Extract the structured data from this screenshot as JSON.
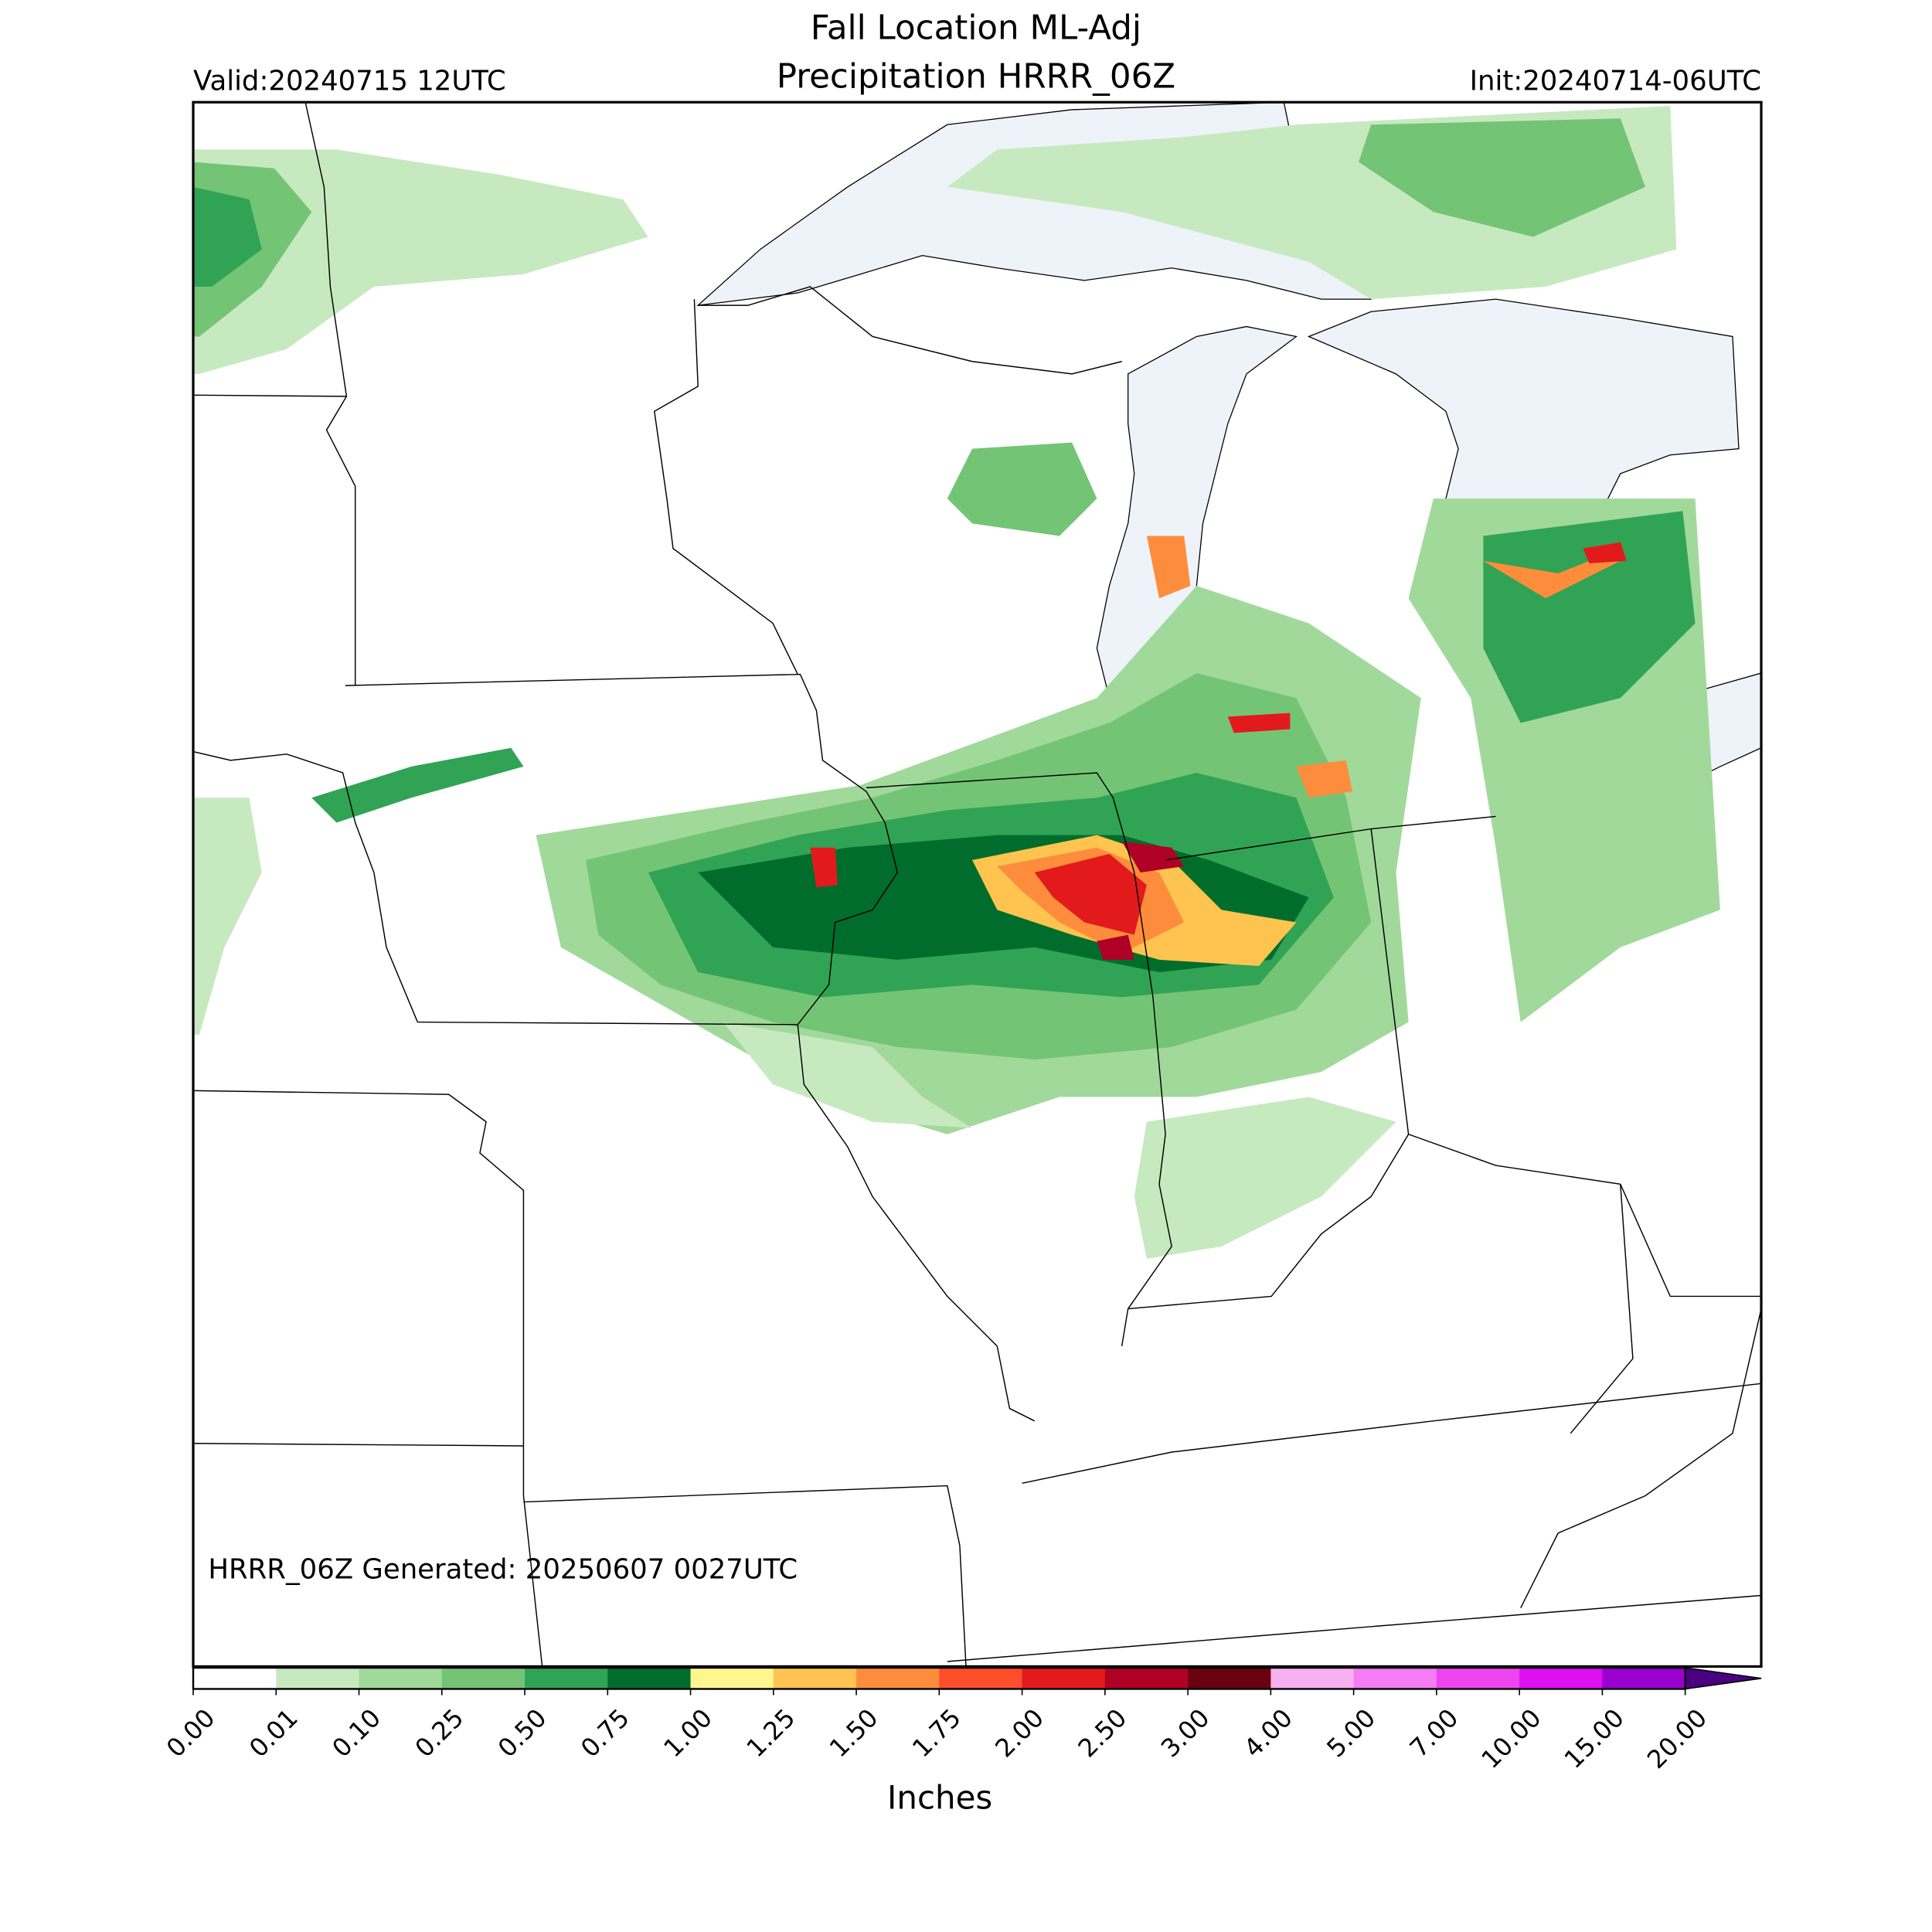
{
  "header": {
    "title_line1": "Fall Location ML-Adj",
    "title_line2": "Precipitation HRRR_06Z",
    "valid": "Valid:20240715 12UTC",
    "init": "Init:20240714-06UTC"
  },
  "footer": {
    "generated": "HRRR_06Z Generated: 20250607 0027UTC"
  },
  "colorbar": {
    "label": "Inches",
    "ticks": [
      {
        "value": 0,
        "label": "0.00"
      },
      {
        "value": 0.01,
        "label": "0.01"
      },
      {
        "value": 0.1,
        "label": "0.10"
      },
      {
        "value": 0.25,
        "label": "0.25"
      },
      {
        "value": 0.5,
        "label": "0.50"
      },
      {
        "value": 0.75,
        "label": "0.75"
      },
      {
        "value": 1,
        "label": "1.00"
      },
      {
        "value": 1.25,
        "label": "1.25"
      },
      {
        "value": 1.5,
        "label": "1.50"
      },
      {
        "value": 1.75,
        "label": "1.75"
      },
      {
        "value": 2,
        "label": "2.00"
      },
      {
        "value": 2.5,
        "label": "2.50"
      },
      {
        "value": 3,
        "label": "3.00"
      },
      {
        "value": 4,
        "label": "4.00"
      },
      {
        "value": 5,
        "label": "5.00"
      },
      {
        "value": 7,
        "label": "7.00"
      },
      {
        "value": 10,
        "label": "10.00"
      },
      {
        "value": 15,
        "label": "15.00"
      },
      {
        "value": 20,
        "label": "20.00"
      }
    ],
    "colors": [
      "#ffffff",
      "#c7e9c0",
      "#a1d99b",
      "#74c476",
      "#31a354",
      "#006d2c",
      "#fff68f",
      "#fec44f",
      "#fd8d3c",
      "#fc4e2a",
      "#e31a1c",
      "#b10026",
      "#6b0010",
      "#f7b0f2",
      "#f47cf4",
      "#ee44f0",
      "#dd10f2",
      "#9a00d0"
    ],
    "extend_color": "#4b0082"
  }
}
